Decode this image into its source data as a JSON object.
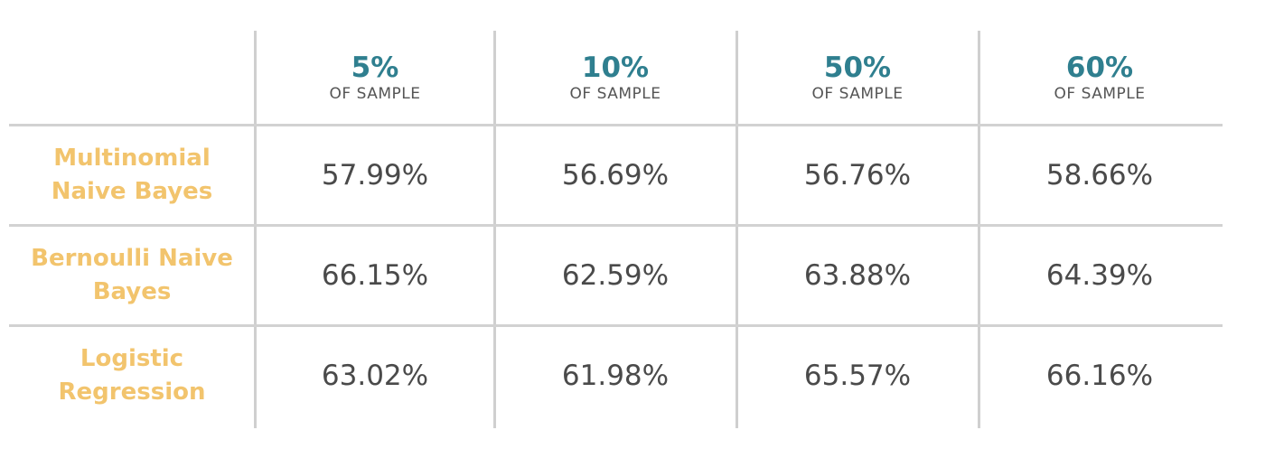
{
  "chart_data": {
    "type": "table",
    "columns": [
      {
        "value": "5%",
        "label": "OF SAMPLE"
      },
      {
        "value": "10%",
        "label": "OF SAMPLE"
      },
      {
        "value": "50%",
        "label": "OF SAMPLE"
      },
      {
        "value": "60%",
        "label": "OF SAMPLE"
      }
    ],
    "rows": [
      {
        "name": "Multinomial Naive Bayes",
        "values": [
          "57.99%",
          "56.69%",
          "56.76%",
          "58.66%"
        ]
      },
      {
        "name": "Bernoulli Naive Bayes",
        "values": [
          "66.15%",
          "62.59%",
          "63.88%",
          "64.39%"
        ]
      },
      {
        "name": "Logistic Regression",
        "values": [
          "63.02%",
          "61.98%",
          "65.57%",
          "66.16%"
        ]
      }
    ],
    "colors": {
      "column_header": "#2f7f8f",
      "row_header": "#f2c46d",
      "cell_text": "#4a4a4a",
      "grid": "#cfcfcf"
    }
  }
}
